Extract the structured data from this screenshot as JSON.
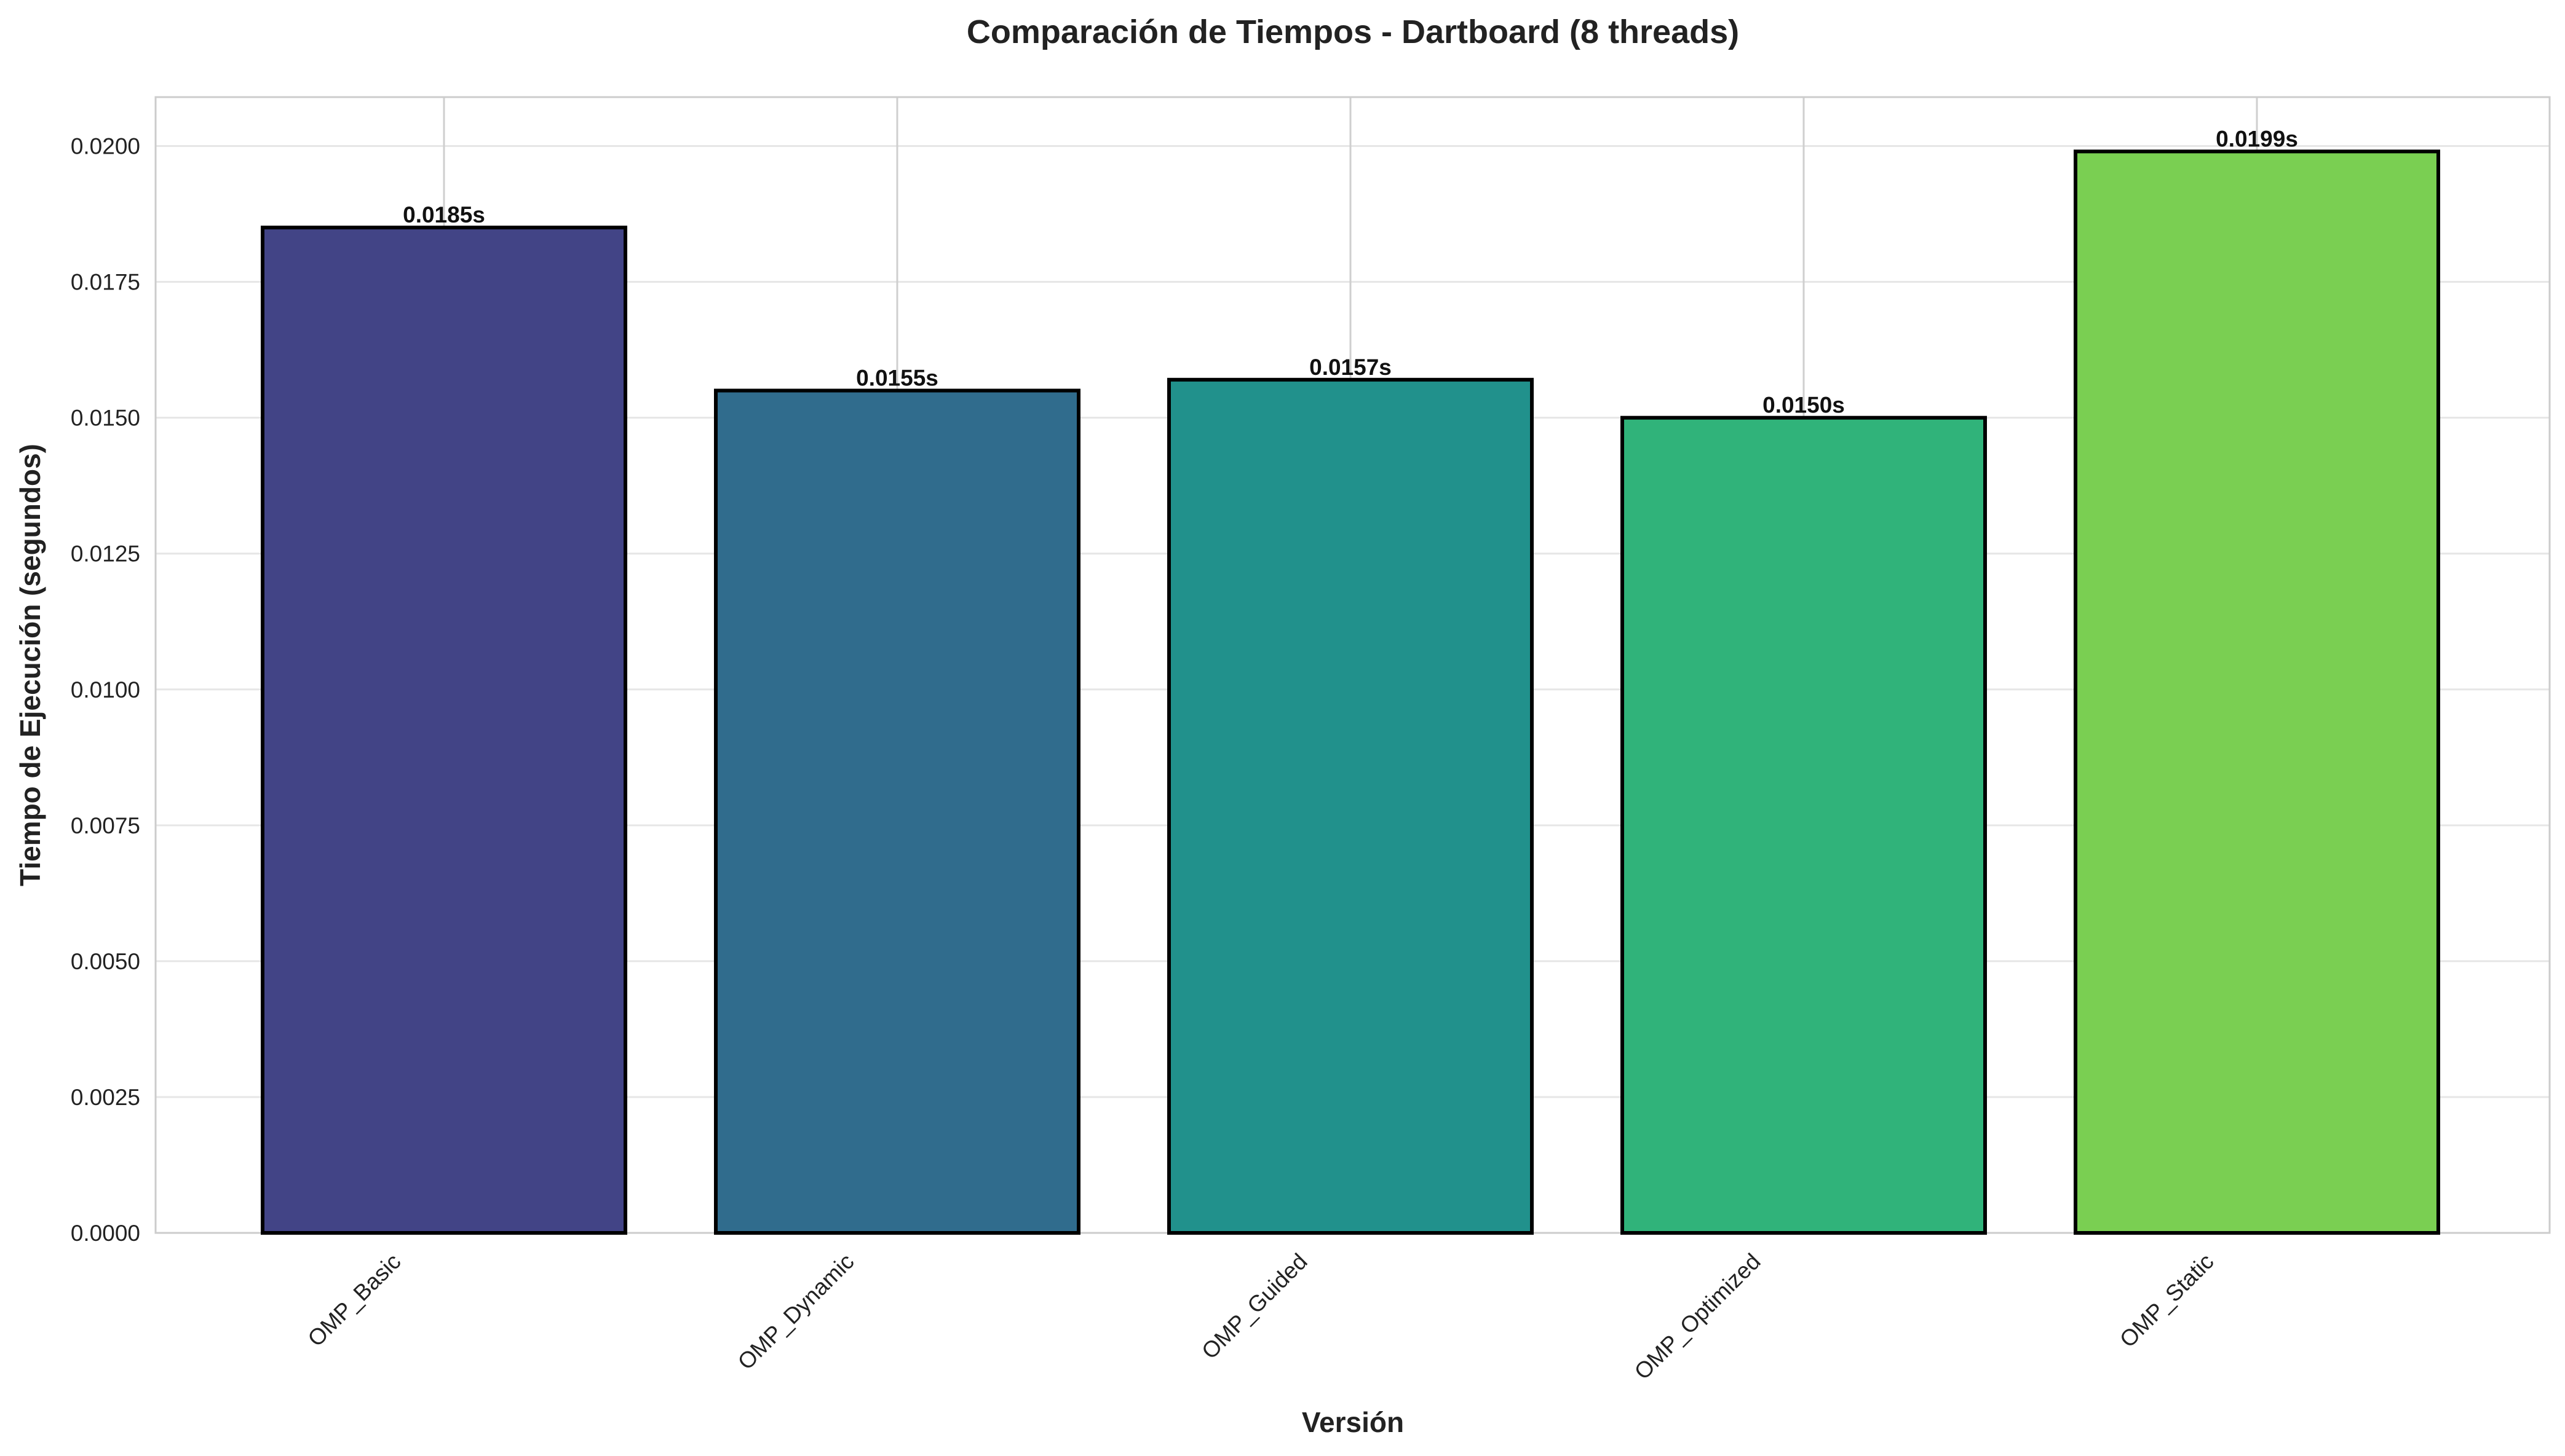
{
  "chart_data": {
    "type": "bar",
    "title": "Comparación de Tiempos - Dartboard (8 threads)",
    "xlabel": "Versión",
    "ylabel": "Tiempo de Ejecución (segundos)",
    "categories": [
      "OMP_Basic",
      "OMP_Dynamic",
      "OMP_Guided",
      "OMP_Optimized",
      "OMP_Static"
    ],
    "values": [
      0.0185,
      0.0155,
      0.0157,
      0.015,
      0.0199
    ],
    "value_labels": [
      "0.0185s",
      "0.0155s",
      "0.0157s",
      "0.0150s",
      "0.0199s"
    ],
    "colors": [
      "#424486",
      "#306c8d",
      "#21918c",
      "#30b37a",
      "#7acf52"
    ],
    "ylim": [
      0,
      0.0209
    ],
    "yticks": [
      0.0,
      0.0025,
      0.005,
      0.0075,
      0.01,
      0.0125,
      0.015,
      0.0175,
      0.02
    ],
    "ytick_labels": [
      "0.0000",
      "0.0025",
      "0.0050",
      "0.0075",
      "0.0100",
      "0.0125",
      "0.0150",
      "0.0175",
      "0.0200"
    ],
    "grid": true,
    "legend": "none"
  }
}
